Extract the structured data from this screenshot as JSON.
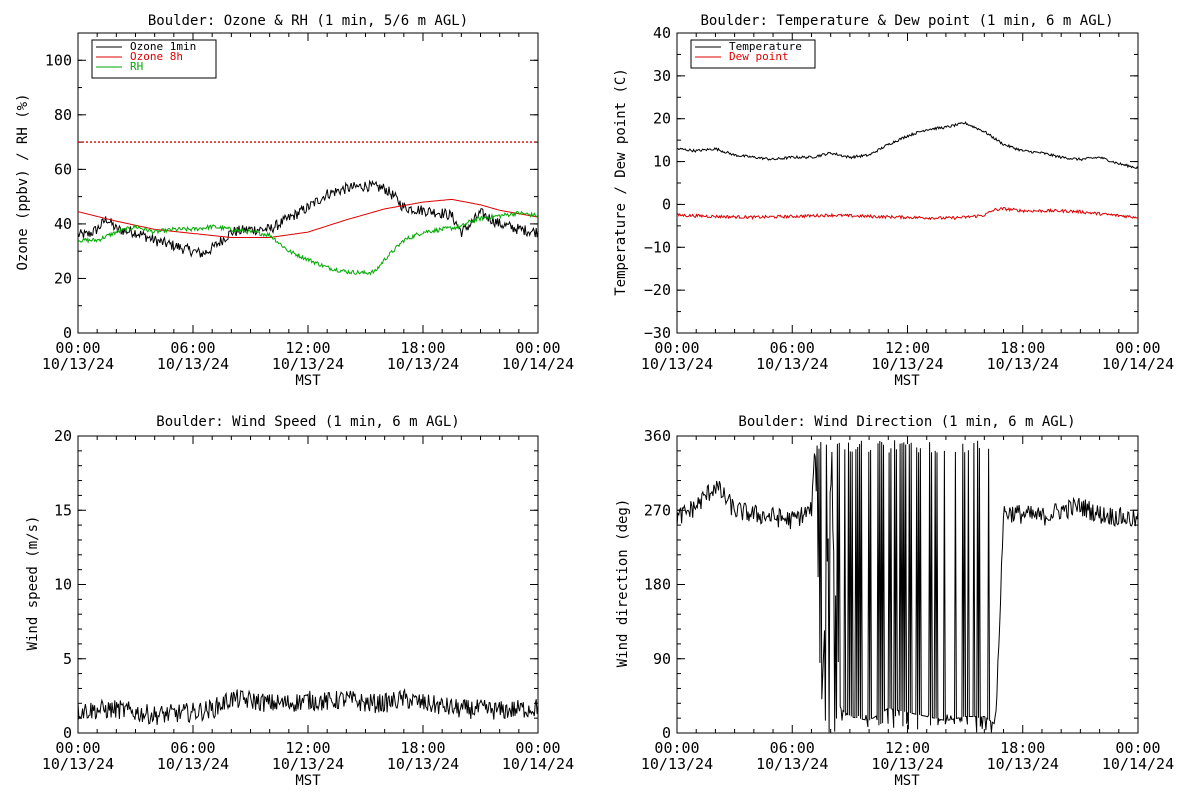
{
  "chart_data": [
    {
      "type": "line",
      "title": "Boulder: Ozone & RH (1 min, 5/6 m AGL)",
      "ylabel": "Ozone (ppbv) / RH (%)",
      "xlabel": "MST",
      "ylim": [
        0,
        110
      ],
      "yticks": [
        "0",
        "20",
        "40",
        "60",
        "80",
        "100"
      ],
      "xlim_hours": [
        0,
        24
      ],
      "xticks": [
        {
          "time": "00:00",
          "date": "10/13/24"
        },
        {
          "time": "06:00",
          "date": "10/13/24"
        },
        {
          "time": "12:00",
          "date": "10/13/24"
        },
        {
          "time": "18:00",
          "date": "10/13/24"
        },
        {
          "time": "00:00",
          "date": "10/14/24"
        }
      ],
      "legend_position": "top-left",
      "reference_line": {
        "y": 70,
        "color": "#dd0000",
        "style": "dotted"
      },
      "series": [
        {
          "name": "Ozone 1min",
          "color": "#000000",
          "noise": 2.0,
          "x": [
            0,
            0.5,
            1,
            1.5,
            2,
            3,
            4,
            5,
            6,
            6.5,
            7,
            7.5,
            8,
            9,
            10,
            11,
            12,
            13,
            14,
            15,
            16,
            16.5,
            17,
            18,
            19,
            19.5,
            20,
            20.5,
            21,
            22,
            23,
            24
          ],
          "y": [
            36,
            36,
            38,
            42,
            38,
            37,
            34,
            32,
            30,
            29,
            31,
            34,
            37,
            38,
            38,
            42,
            46,
            51,
            53,
            54,
            53,
            50,
            46,
            45,
            44,
            43,
            37,
            40,
            44,
            40,
            38,
            37
          ]
        },
        {
          "name": "Ozone 8h",
          "color": "#dd0000",
          "noise": 0,
          "x": [
            0,
            2,
            4,
            6,
            8,
            10,
            12,
            14,
            16,
            18,
            19.5,
            21,
            22,
            24
          ],
          "y": [
            44.5,
            41,
            38,
            36.5,
            35,
            35,
            37,
            41.5,
            45.5,
            48,
            49,
            47,
            45,
            42.5
          ]
        },
        {
          "name": "RH",
          "color": "#00aa00",
          "noise": 0.8,
          "x": [
            0,
            1,
            2,
            3,
            4,
            5,
            6,
            7,
            8,
            9,
            10,
            10.5,
            11,
            12,
            13,
            14,
            15,
            15.5,
            16,
            17,
            18,
            19,
            20,
            20.5,
            21,
            22,
            23,
            24
          ],
          "y": [
            34,
            34,
            37,
            39,
            37,
            38,
            38,
            39,
            38,
            37,
            36,
            33,
            30,
            27,
            24,
            22.5,
            22,
            22.5,
            27,
            34,
            37,
            38,
            39,
            41,
            42,
            43,
            44,
            43
          ]
        }
      ]
    },
    {
      "type": "line",
      "title": "Boulder: Temperature & Dew point (1 min, 6 m AGL)",
      "ylabel": "Temperature / Dew point (C)",
      "xlabel": "MST",
      "ylim": [
        -30,
        40
      ],
      "yticks": [
        "−30",
        "−20",
        "−10",
        "0",
        "10",
        "20",
        "30",
        "40"
      ],
      "xlim_hours": [
        0,
        24
      ],
      "xticks": [
        {
          "time": "00:00",
          "date": "10/13/24"
        },
        {
          "time": "06:00",
          "date": "10/13/24"
        },
        {
          "time": "12:00",
          "date": "10/13/24"
        },
        {
          "time": "18:00",
          "date": "10/13/24"
        },
        {
          "time": "00:00",
          "date": "10/14/24"
        }
      ],
      "legend_position": "top-left",
      "series": [
        {
          "name": "Temperature",
          "color": "#000000",
          "noise": 0.3,
          "x": [
            0,
            1,
            2,
            3,
            4,
            5,
            6,
            7,
            8,
            9,
            10,
            11,
            12,
            13,
            14,
            15,
            16,
            17,
            18,
            19,
            20,
            21,
            22,
            23,
            24
          ],
          "y": [
            13,
            12.5,
            13,
            11.5,
            11,
            10.5,
            11,
            11,
            12,
            11,
            11.5,
            14,
            16,
            17.5,
            18,
            19,
            17,
            14,
            12.5,
            12,
            11,
            10.5,
            11,
            9.5,
            8.5
          ]
        },
        {
          "name": "Dew point",
          "color": "#dd0000",
          "noise": 0.35,
          "x": [
            0,
            2,
            4,
            6,
            8,
            10,
            12,
            14,
            15,
            16,
            16.5,
            17,
            18,
            20,
            21,
            22,
            24
          ],
          "y": [
            -2.5,
            -2.8,
            -3,
            -2.8,
            -2.5,
            -2.8,
            -3,
            -3.2,
            -3,
            -2.5,
            -1.3,
            -1,
            -1.5,
            -1.5,
            -1.7,
            -2.2,
            -3
          ]
        }
      ]
    },
    {
      "type": "line",
      "title": "Boulder: Wind Speed (1 min, 6 m AGL)",
      "ylabel": "Wind speed (m/s)",
      "xlabel": "MST",
      "ylim": [
        0,
        20
      ],
      "yticks": [
        "0",
        "5",
        "10",
        "15",
        "20"
      ],
      "xlim_hours": [
        0,
        24
      ],
      "xticks": [
        {
          "time": "00:00",
          "date": "10/13/24"
        },
        {
          "time": "06:00",
          "date": "10/13/24"
        },
        {
          "time": "12:00",
          "date": "10/13/24"
        },
        {
          "time": "18:00",
          "date": "10/13/24"
        },
        {
          "time": "00:00",
          "date": "10/14/24"
        }
      ],
      "series": [
        {
          "name": "",
          "color": "#000000",
          "noise": 0.6,
          "x": [
            0,
            2,
            4,
            6,
            7,
            8,
            9,
            10,
            11,
            12,
            13,
            14,
            15,
            16,
            17,
            18,
            19,
            20,
            21,
            22,
            24
          ],
          "y": [
            1.5,
            1.6,
            1.2,
            1.4,
            1.6,
            2.3,
            2.2,
            2.0,
            2.0,
            2.2,
            2.1,
            2.3,
            2.0,
            2.0,
            2.3,
            2.0,
            1.8,
            1.6,
            1.6,
            1.5,
            1.7
          ]
        }
      ]
    },
    {
      "type": "line",
      "title": "Boulder: Wind Direction (1 min, 6 m AGL)",
      "ylabel": "Wind direction (deg)",
      "xlabel": "MST",
      "ylim": [
        0,
        360
      ],
      "yticks": [
        "0",
        "90",
        "180",
        "270",
        "360"
      ],
      "xlim_hours": [
        0,
        24
      ],
      "xticks": [
        {
          "time": "00:00",
          "date": "10/13/24"
        },
        {
          "time": "06:00",
          "date": "10/13/24"
        },
        {
          "time": "12:00",
          "date": "10/13/24"
        },
        {
          "time": "18:00",
          "date": "10/13/24"
        },
        {
          "time": "00:00",
          "date": "10/14/24"
        }
      ],
      "series": [
        {
          "name": "",
          "color": "#000000",
          "noise": 12,
          "x": [
            0,
            1,
            2,
            3,
            4,
            5,
            6,
            7,
            7.2,
            7.5,
            8,
            8.5,
            9,
            10,
            11,
            12,
            13,
            14,
            15,
            16,
            16.6,
            17,
            18,
            19,
            20,
            21,
            22,
            23,
            24
          ],
          "y": [
            260,
            275,
            300,
            270,
            265,
            262,
            258,
            270,
            345,
            20,
            310,
            30,
            20,
            15,
            30,
            25,
            20,
            15,
            20,
            20,
            10,
            268,
            265,
            262,
            270,
            275,
            265,
            262,
            258
          ]
        }
      ]
    }
  ]
}
